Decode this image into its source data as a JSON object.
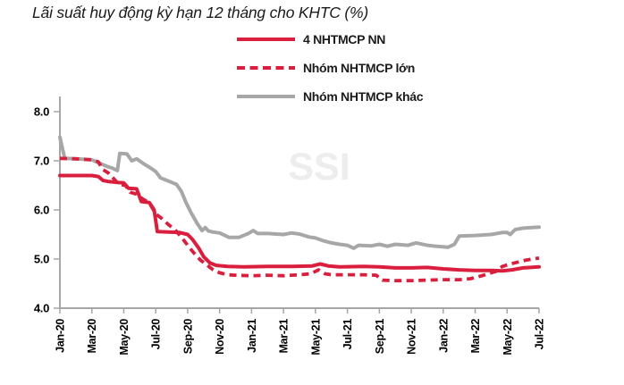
{
  "title": "Lãi suất huy động kỳ hạn 12 tháng cho KHTC (%)",
  "watermark": "SSI",
  "colors": {
    "series_red": "#d91f3d",
    "series_gray": "#a7a7a7",
    "axis": "#a6a6a6",
    "text": "#1b1b1b",
    "tick_label": "#000000",
    "watermark": "#ededed"
  },
  "legend": [
    {
      "label": "4 NHTMCP NN",
      "style": "solid-red"
    },
    {
      "label": "Nhóm NHTMCP lớn",
      "style": "dashed-red"
    },
    {
      "label": "Nhóm NHTMCP khác",
      "style": "solid-gray"
    }
  ],
  "chart_data": {
    "type": "line",
    "title": "Lãi suất huy động kỳ hạn 12 tháng cho KHTC (%)",
    "xlabel": "",
    "ylabel": "",
    "x_unit": "months since Jan-2020 (0 = Jan-20, 30 = Jul-22)",
    "xlim": [
      0,
      30
    ],
    "ylim": [
      4.0,
      8.0
    ],
    "y_ticks": [
      "4.0",
      "5.0",
      "6.0",
      "7.0",
      "8.0"
    ],
    "x_tick_positions": [
      0,
      2,
      4,
      6,
      8,
      10,
      12,
      14,
      16,
      18,
      20,
      22,
      24,
      26,
      28,
      30
    ],
    "x_tick_labels": [
      "Jan-20",
      "Mar-20",
      "May-20",
      "Jul-20",
      "Sep-20",
      "Nov-20",
      "Jan-21",
      "Mar-21",
      "May-21",
      "Jul-21",
      "Sep-21",
      "Nov-21",
      "Jan-22",
      "Mar-22",
      "May-22",
      "Jul-22"
    ],
    "grid": false,
    "legend_position": "top-center",
    "series": [
      {
        "name": "4 NHTMCP NN",
        "color": "#d91f3d",
        "dash": "solid",
        "points": [
          [
            0,
            6.7
          ],
          [
            1,
            6.7
          ],
          [
            2,
            6.7
          ],
          [
            2.4,
            6.68
          ],
          [
            2.7,
            6.6
          ],
          [
            3,
            6.58
          ],
          [
            3.6,
            6.56
          ],
          [
            4,
            6.55
          ],
          [
            4.3,
            6.44
          ],
          [
            4.8,
            6.43
          ],
          [
            5.1,
            6.17
          ],
          [
            5.6,
            6.15
          ],
          [
            5.9,
            6.0
          ],
          [
            6.1,
            5.56
          ],
          [
            7.5,
            5.54
          ],
          [
            8,
            5.5
          ],
          [
            8.3,
            5.4
          ],
          [
            8.7,
            5.22
          ],
          [
            9,
            5.05
          ],
          [
            9.4,
            4.92
          ],
          [
            9.8,
            4.87
          ],
          [
            10.5,
            4.85
          ],
          [
            11.5,
            4.84
          ],
          [
            13,
            4.85
          ],
          [
            14.5,
            4.85
          ],
          [
            15.8,
            4.86
          ],
          [
            16.3,
            4.9
          ],
          [
            16.8,
            4.86
          ],
          [
            17.5,
            4.84
          ],
          [
            19,
            4.85
          ],
          [
            20,
            4.84
          ],
          [
            21,
            4.82
          ],
          [
            22,
            4.82
          ],
          [
            23,
            4.83
          ],
          [
            24,
            4.8
          ],
          [
            25,
            4.78
          ],
          [
            26,
            4.77
          ],
          [
            27,
            4.77
          ],
          [
            27.7,
            4.76
          ],
          [
            28.3,
            4.78
          ],
          [
            29,
            4.82
          ],
          [
            30,
            4.84
          ]
        ]
      },
      {
        "name": "Nhóm NHTMCP lớn",
        "color": "#d91f3d",
        "dash": "dashed",
        "points": [
          [
            0,
            7.05
          ],
          [
            1,
            7.04
          ],
          [
            2,
            7.02
          ],
          [
            2.4,
            6.98
          ],
          [
            2.7,
            6.82
          ],
          [
            3,
            6.76
          ],
          [
            3.3,
            6.66
          ],
          [
            3.7,
            6.52
          ],
          [
            4.1,
            6.5
          ],
          [
            4.4,
            6.36
          ],
          [
            4.8,
            6.32
          ],
          [
            5.2,
            6.22
          ],
          [
            5.6,
            6.14
          ],
          [
            6,
            5.92
          ],
          [
            6.4,
            5.82
          ],
          [
            6.8,
            5.7
          ],
          [
            7.2,
            5.6
          ],
          [
            7.6,
            5.45
          ],
          [
            8,
            5.28
          ],
          [
            8.4,
            5.12
          ],
          [
            8.8,
            4.98
          ],
          [
            9.2,
            4.88
          ],
          [
            9.6,
            4.78
          ],
          [
            10,
            4.72
          ],
          [
            10.5,
            4.68
          ],
          [
            11,
            4.67
          ],
          [
            12,
            4.66
          ],
          [
            13,
            4.67
          ],
          [
            14,
            4.66
          ],
          [
            15,
            4.68
          ],
          [
            15.7,
            4.7
          ],
          [
            16.2,
            4.78
          ],
          [
            16.6,
            4.7
          ],
          [
            17,
            4.68
          ],
          [
            18,
            4.68
          ],
          [
            19,
            4.68
          ],
          [
            19.8,
            4.67
          ],
          [
            20.2,
            4.57
          ],
          [
            21,
            4.56
          ],
          [
            22,
            4.56
          ],
          [
            23,
            4.57
          ],
          [
            24,
            4.58
          ],
          [
            25,
            4.58
          ],
          [
            25.7,
            4.6
          ],
          [
            26.3,
            4.65
          ],
          [
            26.8,
            4.7
          ],
          [
            27.3,
            4.75
          ],
          [
            27.7,
            4.85
          ],
          [
            28.2,
            4.9
          ],
          [
            28.7,
            4.94
          ],
          [
            29.2,
            4.98
          ],
          [
            30,
            5.02
          ]
        ]
      },
      {
        "name": "Nhóm NHTMCP khác",
        "color": "#a7a7a7",
        "dash": "solid",
        "points": [
          [
            0,
            7.48
          ],
          [
            0.3,
            7.05
          ],
          [
            1,
            7.04
          ],
          [
            2,
            7.02
          ],
          [
            2.5,
            6.95
          ],
          [
            3,
            6.88
          ],
          [
            3.3,
            6.85
          ],
          [
            3.6,
            6.8
          ],
          [
            3.75,
            7.15
          ],
          [
            4.2,
            7.14
          ],
          [
            4.5,
            7.0
          ],
          [
            4.8,
            7.04
          ],
          [
            5.2,
            6.95
          ],
          [
            5.7,
            6.85
          ],
          [
            6,
            6.78
          ],
          [
            6.3,
            6.65
          ],
          [
            6.7,
            6.6
          ],
          [
            7,
            6.56
          ],
          [
            7.3,
            6.52
          ],
          [
            7.6,
            6.38
          ],
          [
            7.9,
            6.15
          ],
          [
            8.2,
            5.95
          ],
          [
            8.6,
            5.72
          ],
          [
            8.9,
            5.58
          ],
          [
            9.1,
            5.64
          ],
          [
            9.3,
            5.57
          ],
          [
            9.6,
            5.55
          ],
          [
            10,
            5.53
          ],
          [
            10.6,
            5.44
          ],
          [
            11.2,
            5.44
          ],
          [
            11.8,
            5.52
          ],
          [
            12.1,
            5.58
          ],
          [
            12.4,
            5.52
          ],
          [
            13,
            5.52
          ],
          [
            14,
            5.5
          ],
          [
            14.5,
            5.53
          ],
          [
            15,
            5.51
          ],
          [
            15.6,
            5.45
          ],
          [
            16,
            5.43
          ],
          [
            16.5,
            5.37
          ],
          [
            17,
            5.33
          ],
          [
            17.5,
            5.3
          ],
          [
            18,
            5.28
          ],
          [
            18.4,
            5.22
          ],
          [
            18.7,
            5.28
          ],
          [
            19.5,
            5.27
          ],
          [
            20,
            5.3
          ],
          [
            20.5,
            5.26
          ],
          [
            21,
            5.3
          ],
          [
            21.8,
            5.28
          ],
          [
            22.3,
            5.33
          ],
          [
            23,
            5.28
          ],
          [
            23.6,
            5.26
          ],
          [
            24.3,
            5.24
          ],
          [
            24.7,
            5.3
          ],
          [
            25,
            5.47
          ],
          [
            26,
            5.48
          ],
          [
            27,
            5.5
          ],
          [
            27.7,
            5.54
          ],
          [
            28,
            5.54
          ],
          [
            28.2,
            5.5
          ],
          [
            28.5,
            5.6
          ],
          [
            29,
            5.63
          ],
          [
            30,
            5.65
          ]
        ]
      }
    ],
    "watermark": "SSI"
  }
}
